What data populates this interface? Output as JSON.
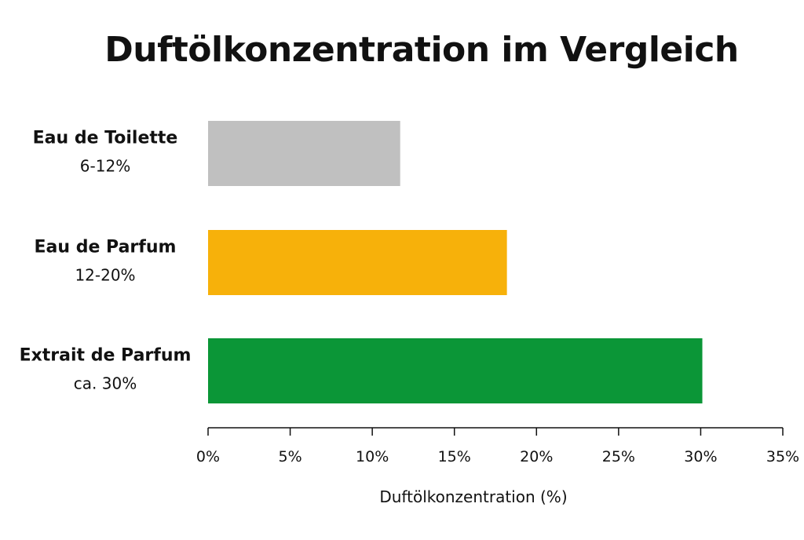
{
  "chart_data": {
    "type": "bar",
    "orientation": "horizontal",
    "title": "Duftölkonzentration im Vergleich",
    "xlabel": "Duftölkonzentration (%)",
    "ylabel": "",
    "xlim": [
      0,
      35
    ],
    "xticks": [
      0,
      5,
      10,
      15,
      20,
      25,
      30,
      35
    ],
    "xtick_labels": [
      "0%",
      "5%",
      "10%",
      "15%",
      "20%",
      "25%",
      "30%",
      "35%"
    ],
    "grid": false,
    "legend": "none",
    "categories": [
      {
        "name": "Eau de Toilette",
        "range_label": "6-12%",
        "value": 11.7,
        "color": "#c0c0c0"
      },
      {
        "name": "Eau de Parfum",
        "range_label": "12-20%",
        "value": 18.2,
        "color": "#f7b10a"
      },
      {
        "name": "Extrait de Parfum",
        "range_label": "ca. 30%",
        "value": 30.1,
        "color": "#0b9637"
      }
    ]
  }
}
